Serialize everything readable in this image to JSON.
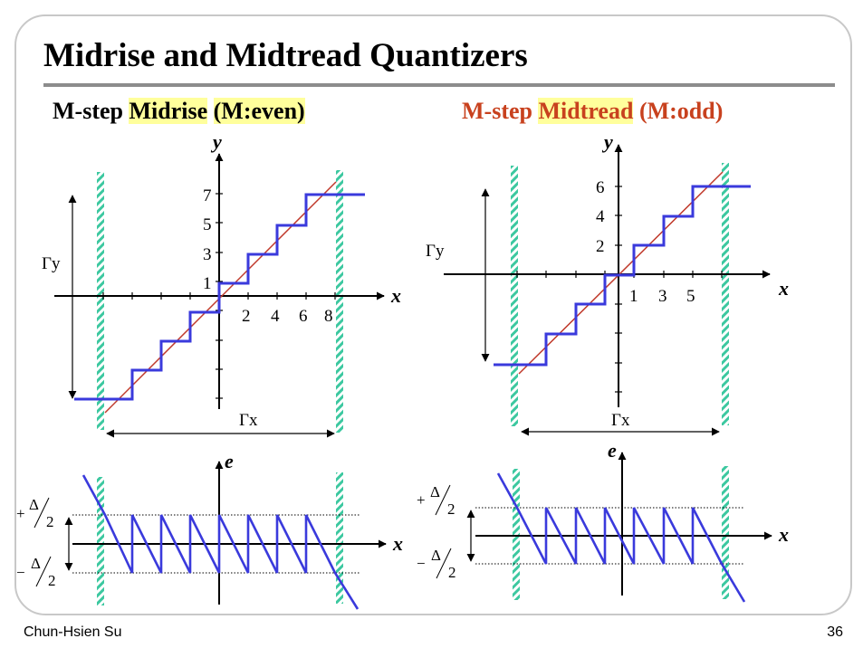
{
  "slide": {
    "title": "Midrise and Midtread Quantizers",
    "author": "Chun-Hsien Su",
    "page_number": "36"
  },
  "midrise": {
    "heading_prefix": "M-step ",
    "heading_highlight": "Midrise",
    "heading_space": " ",
    "heading_suffix": "(M:even)",
    "y_ticks": [
      "1",
      "3",
      "5",
      "7"
    ],
    "x_ticks": [
      "2",
      "4",
      "6",
      "8"
    ],
    "range_y": "Γy",
    "range_x": "Γx"
  },
  "midtread": {
    "heading_prefix": "M-step ",
    "heading_highlight": "Midtread",
    "heading_suffix": " (M:odd)",
    "y_ticks": [
      "2",
      "4",
      "6"
    ],
    "x_ticks": [
      "1",
      "3",
      "5"
    ],
    "range_y": "Γy",
    "range_x": "Γx"
  },
  "axis_labels": {
    "x": "x",
    "y": "y",
    "e": "e"
  },
  "error_bounds": {
    "plus": "+",
    "minus": "−",
    "delta": "Δ",
    "two": "2"
  },
  "colors": {
    "staircase": "#3a3adc",
    "ideal": "#c0392b",
    "overload": "#3cc8a0"
  }
}
